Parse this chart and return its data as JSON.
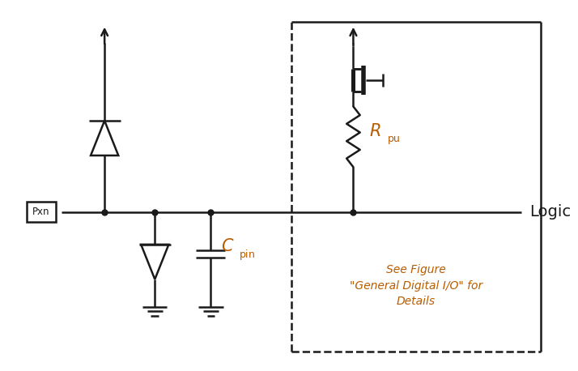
{
  "bg_color": "#ffffff",
  "line_color": "#1a1a1a",
  "label_color_orange": "#b85c00",
  "fig_width": 7.14,
  "fig_height": 4.58,
  "dpi": 100,
  "note_text": "See Figure\n\"General Digital I/O\" for\nDetails",
  "logic_text": "Logic",
  "pxn_text": "Pxn",
  "lw": 1.8
}
